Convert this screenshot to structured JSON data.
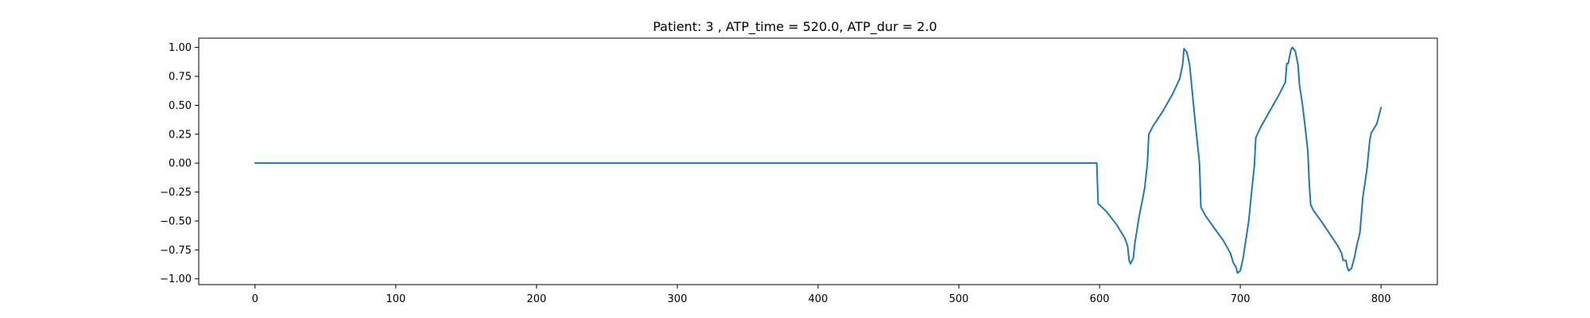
{
  "chart_data": {
    "type": "line",
    "title": "Patient: 3 , ATP_time = 520.0, ATP_dur = 2.0",
    "xlabel": "",
    "ylabel": "",
    "xlim": [
      -40,
      840
    ],
    "ylim": [
      -1.05,
      1.08
    ],
    "xticks": [
      0,
      100,
      200,
      300,
      400,
      500,
      600,
      700,
      800
    ],
    "yticks": [
      -1.0,
      -0.75,
      -0.5,
      -0.25,
      0.0,
      0.25,
      0.5,
      0.75,
      1.0
    ],
    "ytick_labels": [
      "−1.00",
      "−0.75",
      "−0.50",
      "−0.25",
      "0.00",
      "0.25",
      "0.50",
      "0.75",
      "1.00"
    ],
    "grid": false,
    "series": [
      {
        "color": "#1f77b4",
        "points": [
          [
            0,
            0.0
          ],
          [
            598,
            0.0
          ],
          [
            599,
            -0.35
          ],
          [
            605,
            -0.42
          ],
          [
            612,
            -0.53
          ],
          [
            618,
            -0.65
          ],
          [
            620,
            -0.72
          ],
          [
            621,
            -0.84
          ],
          [
            622,
            -0.87
          ],
          [
            624,
            -0.82
          ],
          [
            625,
            -0.7
          ],
          [
            628,
            -0.47
          ],
          [
            632,
            -0.22
          ],
          [
            634,
            0.0
          ],
          [
            635,
            0.25
          ],
          [
            638,
            0.32
          ],
          [
            645,
            0.45
          ],
          [
            652,
            0.6
          ],
          [
            657,
            0.73
          ],
          [
            659,
            0.85
          ],
          [
            660,
            0.99
          ],
          [
            662,
            0.96
          ],
          [
            664,
            0.85
          ],
          [
            666,
            0.6
          ],
          [
            668,
            0.35
          ],
          [
            671,
            0.0
          ],
          [
            672,
            -0.38
          ],
          [
            675,
            -0.45
          ],
          [
            682,
            -0.57
          ],
          [
            688,
            -0.67
          ],
          [
            693,
            -0.78
          ],
          [
            695,
            -0.86
          ],
          [
            697,
            -0.9
          ],
          [
            698,
            -0.95
          ],
          [
            700,
            -0.93
          ],
          [
            702,
            -0.82
          ],
          [
            704,
            -0.66
          ],
          [
            706,
            -0.5
          ],
          [
            708,
            -0.25
          ],
          [
            710,
            -0.02
          ],
          [
            711,
            0.22
          ],
          [
            714,
            0.3
          ],
          [
            720,
            0.43
          ],
          [
            727,
            0.58
          ],
          [
            732,
            0.7
          ],
          [
            733,
            0.86
          ],
          [
            734,
            0.86
          ],
          [
            736,
            0.98
          ],
          [
            737,
            1.0
          ],
          [
            739,
            0.97
          ],
          [
            741,
            0.85
          ],
          [
            742,
            0.68
          ],
          [
            744,
            0.52
          ],
          [
            746,
            0.32
          ],
          [
            748,
            0.1
          ],
          [
            749,
            -0.18
          ],
          [
            750,
            -0.36
          ],
          [
            752,
            -0.41
          ],
          [
            758,
            -0.51
          ],
          [
            764,
            -0.62
          ],
          [
            769,
            -0.71
          ],
          [
            772,
            -0.78
          ],
          [
            773,
            -0.84
          ],
          [
            775,
            -0.84
          ],
          [
            776,
            -0.9
          ],
          [
            777,
            -0.93
          ],
          [
            779,
            -0.91
          ],
          [
            781,
            -0.82
          ],
          [
            783,
            -0.7
          ],
          [
            785,
            -0.6
          ],
          [
            787,
            -0.3
          ],
          [
            790,
            -0.05
          ],
          [
            792,
            0.2
          ],
          [
            793,
            0.26
          ],
          [
            797,
            0.34
          ],
          [
            800,
            0.48
          ]
        ]
      }
    ]
  }
}
